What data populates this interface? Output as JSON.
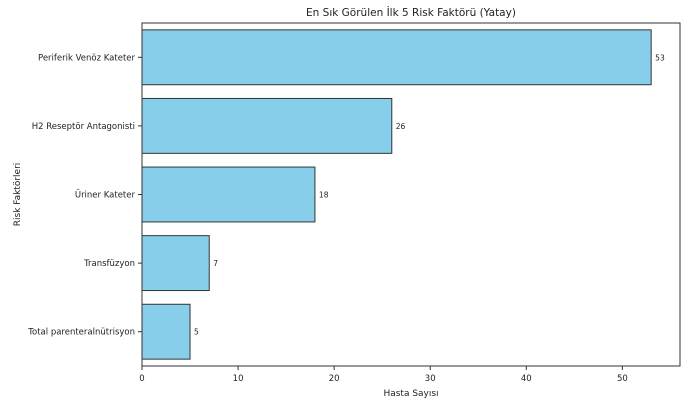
{
  "chart_data": {
    "type": "bar",
    "orientation": "horizontal",
    "title": "En Sık Görülen İlk 5 Risk Faktörü (Yatay)",
    "xlabel": "Hasta Sayısı",
    "ylabel": "Risk Faktörleri",
    "categories": [
      "Periferik Venöz Kateter",
      "H2 Reseptör Antagonisti",
      "Üriner Kateter",
      "Transfüzyon",
      "Total parenteralnütrisyon"
    ],
    "values": [
      53,
      26,
      18,
      7,
      5
    ],
    "data_labels": [
      "53",
      "26",
      "18",
      "7",
      "5"
    ],
    "xlim": [
      0,
      56
    ],
    "xticks": [
      0,
      10,
      20,
      30,
      40,
      50
    ],
    "xtick_labels": [
      "0",
      "10",
      "20",
      "30",
      "40",
      "50"
    ],
    "grid": false,
    "bar_color": "#87CEEB",
    "edge_color": "#333333"
  }
}
